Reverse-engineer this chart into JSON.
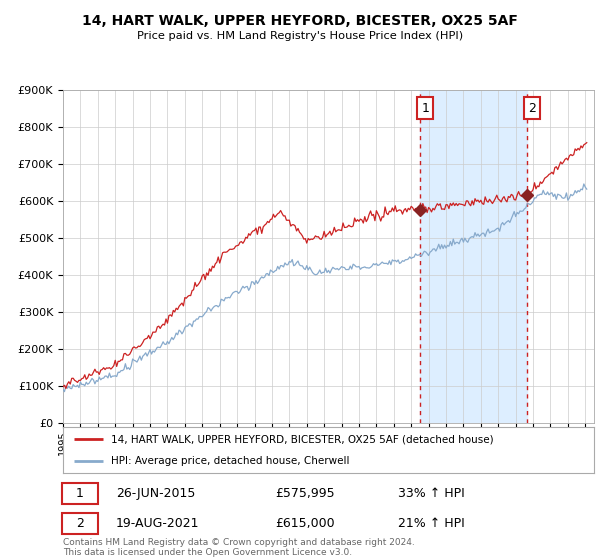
{
  "title": "14, HART WALK, UPPER HEYFORD, BICESTER, OX25 5AF",
  "subtitle": "Price paid vs. HM Land Registry's House Price Index (HPI)",
  "ylim": [
    0,
    900000
  ],
  "yticks": [
    0,
    100000,
    200000,
    300000,
    400000,
    500000,
    600000,
    700000,
    800000,
    900000
  ],
  "ytick_labels": [
    "£0",
    "£100K",
    "£200K",
    "£300K",
    "£400K",
    "£500K",
    "£600K",
    "£700K",
    "£800K",
    "£900K"
  ],
  "legend_line1": "14, HART WALK, UPPER HEYFORD, BICESTER, OX25 5AF (detached house)",
  "legend_line2": "HPI: Average price, detached house, Cherwell",
  "sale1_date": "26-JUN-2015",
  "sale1_price": "£575,995",
  "sale1_hpi": "33% ↑ HPI",
  "sale1_label": "1",
  "sale1_year": 2015.5,
  "sale1_value": 575995,
  "sale2_date": "19-AUG-2021",
  "sale2_price": "£615,000",
  "sale2_hpi": "21% ↑ HPI",
  "sale2_label": "2",
  "sale2_year": 2021.63,
  "sale2_value": 615000,
  "footer": "Contains HM Land Registry data © Crown copyright and database right 2024.\nThis data is licensed under the Open Government Licence v3.0.",
  "line_color_red": "#cc2222",
  "line_color_blue": "#88aacc",
  "shade_color": "#ddeeff",
  "background_color": "#ffffff",
  "grid_color": "#cccccc"
}
